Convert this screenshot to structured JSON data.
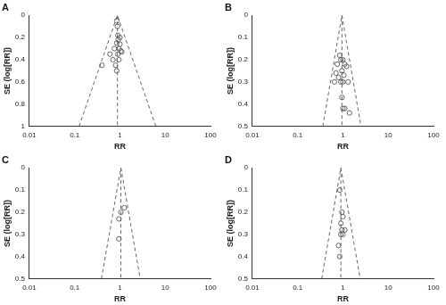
{
  "chart_data": [
    {
      "type": "scatter",
      "title": "A",
      "x_label": "RR",
      "y_label": "SE (log[RR])",
      "log": "x",
      "grid": false,
      "xlim": [
        0.01,
        100
      ],
      "xticks": [
        0.01,
        0.1,
        1,
        10,
        100
      ],
      "ylim": [
        0,
        1
      ],
      "yticks": [
        0,
        0.2,
        0.4,
        0.6,
        0.8,
        1
      ],
      "series": [
        {
          "type": "scatter",
          "marker": "circle_open",
          "color": "#555555",
          "x": [
            0.85,
            0.88,
            0.9,
            1.0,
            0.92,
            0.85,
            1.0,
            0.95,
            0.75,
            1.05,
            0.6,
            0.9,
            1.1,
            0.7,
            0.95,
            0.4,
            0.8,
            0.85
          ],
          "values": [
            0.05,
            0.1,
            0.18,
            0.2,
            0.22,
            0.25,
            0.26,
            0.3,
            0.3,
            0.32,
            0.35,
            0.35,
            0.33,
            0.4,
            0.4,
            0.45,
            0.45,
            0.5
          ]
        },
        {
          "type": "line",
          "line_style": "dashed",
          "color": "#666666",
          "x": [
            0.125,
            0.88,
            6.2
          ],
          "values": [
            1,
            0,
            1
          ]
        },
        {
          "type": "line",
          "line_style": "dashed",
          "color": "#666666",
          "x": [
            0.88,
            0.88
          ],
          "values": [
            0,
            1
          ]
        }
      ]
    },
    {
      "type": "scatter",
      "title": "B",
      "x_label": "RR",
      "y_label": "SE (log[RR])",
      "log": "x",
      "grid": false,
      "xlim": [
        0.01,
        100
      ],
      "xticks": [
        0.01,
        0.1,
        1,
        10,
        100
      ],
      "ylim": [
        0,
        0.5
      ],
      "yticks": [
        0,
        0.1,
        0.2,
        0.3,
        0.4,
        0.5
      ],
      "series": [
        {
          "type": "scatter",
          "marker": "circle_open",
          "color": "#555555",
          "x": [
            0.85,
            0.9,
            1.0,
            1.1,
            0.75,
            0.95,
            1.2,
            0.7,
            0.8,
            1.05,
            1.3,
            0.9,
            1.0,
            0.65,
            0.95,
            1.0,
            1.1,
            1.4
          ],
          "values": [
            0.18,
            0.2,
            0.2,
            0.22,
            0.22,
            0.25,
            0.23,
            0.26,
            0.28,
            0.27,
            0.3,
            0.3,
            0.3,
            0.3,
            0.37,
            0.42,
            0.42,
            0.44
          ]
        },
        {
          "type": "line",
          "line_style": "dashed",
          "color": "#666666",
          "x": [
            0.36,
            0.95,
            2.5
          ],
          "values": [
            0.5,
            0,
            0.5
          ]
        },
        {
          "type": "line",
          "line_style": "dashed",
          "color": "#666666",
          "x": [
            0.95,
            0.95
          ],
          "values": [
            0,
            0.5
          ]
        }
      ]
    },
    {
      "type": "scatter",
      "title": "C",
      "x_label": "RR",
      "y_label": "SE (log[RR])",
      "log": "x",
      "grid": false,
      "xlim": [
        0.01,
        100
      ],
      "xticks": [
        0.01,
        0.1,
        1,
        10,
        100
      ],
      "ylim": [
        0,
        0.5
      ],
      "yticks": [
        0,
        0.1,
        0.2,
        0.3,
        0.4,
        0.5
      ],
      "series": [
        {
          "type": "scatter",
          "marker": "circle_open",
          "color": "#555555",
          "x": [
            1.25,
            1.05,
            0.95,
            0.95
          ],
          "values": [
            0.18,
            0.2,
            0.23,
            0.32
          ]
        },
        {
          "type": "line",
          "line_style": "dashed",
          "color": "#666666",
          "x": [
            0.39,
            1.05,
            2.8
          ],
          "values": [
            0.5,
            0,
            0.5
          ]
        },
        {
          "type": "line",
          "line_style": "dashed",
          "color": "#666666",
          "x": [
            1.05,
            1.05
          ],
          "values": [
            0,
            0.5
          ]
        }
      ]
    },
    {
      "type": "scatter",
      "title": "D",
      "x_label": "RR",
      "y_label": "SE (log[RR])",
      "log": "x",
      "grid": false,
      "xlim": [
        0.01,
        100
      ],
      "xticks": [
        0.01,
        0.1,
        1,
        10,
        100
      ],
      "ylim": [
        0,
        0.5
      ],
      "yticks": [
        0,
        0.1,
        0.2,
        0.3,
        0.4,
        0.5
      ],
      "series": [
        {
          "type": "scatter",
          "marker": "circle_open",
          "color": "#555555",
          "x": [
            0.85,
            0.95,
            1.0,
            0.9,
            0.95,
            1.1,
            0.9,
            1.0,
            0.8,
            0.85
          ],
          "values": [
            0.1,
            0.2,
            0.22,
            0.25,
            0.28,
            0.28,
            0.3,
            0.3,
            0.35,
            0.4
          ]
        },
        {
          "type": "line",
          "line_style": "dashed",
          "color": "#666666",
          "x": [
            0.34,
            0.9,
            2.4
          ],
          "values": [
            0.5,
            0,
            0.5
          ]
        },
        {
          "type": "line",
          "line_style": "dashed",
          "color": "#666666",
          "x": [
            0.9,
            0.9
          ],
          "values": [
            0,
            0.5
          ]
        }
      ]
    }
  ]
}
